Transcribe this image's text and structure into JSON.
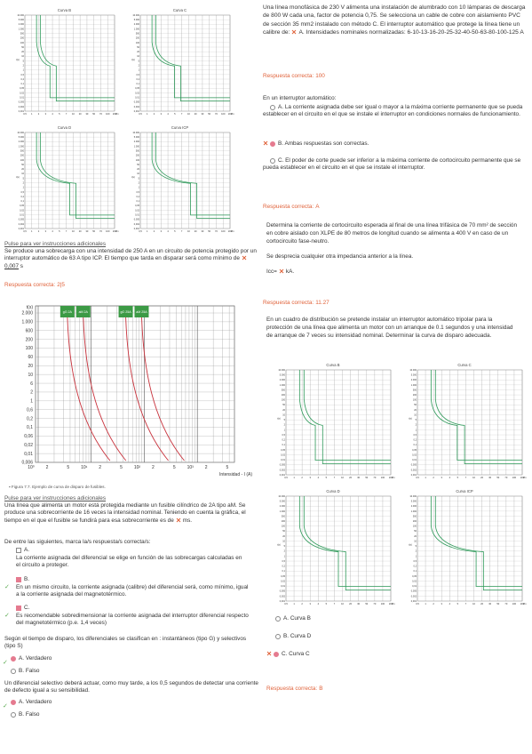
{
  "left": {
    "charts_top": [
      "Curva B",
      "Curva C",
      "Curva D",
      "Curva ICP"
    ],
    "q1": {
      "link": "Pulse para ver instrucciones adicionales",
      "text": "Se produce una sobrecarga con una intensidad de 250 A en un circuito de potencia protegido por un interruptor automático de 63 A tipo ICP. El tiempo que tarda en disparar será como mínimo de",
      "answer": "0,007",
      "unit": "s",
      "correct": "2|5"
    },
    "big_chart": {
      "y_label": "t(s)",
      "yticks": [
        "2.000",
        "1.000",
        "600",
        "200",
        "100",
        "60",
        "20",
        "10",
        "6",
        "2",
        "1",
        "0,6",
        "0,2",
        "0,1",
        "0,06",
        "0,02",
        "0,01",
        "0,006"
      ],
      "xticks": [
        "10⁰",
        "2",
        "5",
        "10¹",
        "2",
        "5",
        "10²",
        "2",
        "5",
        "10³",
        "2",
        "5"
      ],
      "x_label": "Intensidad - I (A)",
      "fuses": [
        "gG 2A",
        "aM 2A",
        "gG 25A",
        "aM 25A"
      ],
      "caption": "Figura 7.7. Ejemplo de curva de disparo de fusibles."
    },
    "q2": {
      "link": "Pulse para ver instrucciones adicionales",
      "text": "Una línea que alimenta un motor está protegida mediante un fusible cilíndrico de 2A tipo aM. Se produce una sobrecorriente de  16 veces la intensidad nominal. Teniendo en cuenta la gráfica, el tiempo en el que el fusible se fundirá para esa sobrecorriente es de",
      "unit": "ms."
    },
    "q3": {
      "stem": "De entre las siguientes, marca la/s respuesta/s correcta/s:",
      "options": [
        {
          "letter": "A.",
          "text": "La corriente asignada del diferencial se elige en función de las sobrecargas calculadas en el circuito a proteger."
        },
        {
          "letter": "B.",
          "text": "En un mismo circuito, la corriente asignada (calibre) del diferencial será, como mínimo, igual a la corriente asignada del magnetotérmico."
        },
        {
          "letter": "C.",
          "text": "Es recomendable sobredimensionar la corriente asignada del interruptor diferencial respecto del magnetotérmico (p.e. 1,4 veces)"
        }
      ]
    },
    "q4": {
      "stem": "Según el tiempo de disparo, los diferenciales se clasifican en : instantáneos (tipo G) y selectivos (tipo S)",
      "options": [
        "A. Verdadero",
        "B. Falso"
      ]
    },
    "q5": {
      "stem": "Un diferencial selectivo deberá actuar, como muy tarde, a los 0,5 segundos de detectar una corriente de defecto igual a su sensibilidad.",
      "options": [
        "A. Verdadero",
        "B. Falso"
      ]
    }
  },
  "right": {
    "q1": {
      "text_before": "Una línea monofásica de 230 V alimenta una instalación de alumbrado con 10 lámparas de descarga de 800 W cada una, factor de potencia 0,75. Se selecciona un cable de cobre con aislamiento PVC de sección 35 mm2 instalado con método C. El interruptor automático que protege la línea tiene un calibre de:",
      "text_after": "A. Intensidades nominales normalizadas: 6-10-13-16-20-25-32-40-50-63-80-100-125 A",
      "correct": "100"
    },
    "q2": {
      "stem": "En un interruptor automático:",
      "options": [
        "A. La corriente asignada debe ser igual o mayor a la máxima corriente permanente que se pueda establecer en el circuito en el que se instale el interruptor en condiciones normales de funcionamiento.",
        "B. Ambas respuestas son correctas.",
        "C. El poder de corte puede ser inferior a la máxima corriente de cortocircuito permanente que se pueda establecer en el circuito en el que se instale el interruptor."
      ],
      "correct": "A"
    },
    "q3": {
      "text": "Determina la corriente de cortocircuito esperada al final de una línea trifásica de 70 mm² de sección en cobre aislado con XLPE de 80 metros de longitud cuando se alimenta a 400 V en caso de un cortocircuito fase-neutro.",
      "note": "Se desprecia cualquier otra impedancia anterior a la línea.",
      "prefix": "Icc=",
      "unit": "kA.",
      "correct": "11.27"
    },
    "q4": {
      "text": "En un cuadro de distribución se pretende instalar un interruptor automático tripolar para la protección de una línea que alimenta un motor con un arranque de 0.1 segundos y una intensidad de arranque de 7 veces su intensidad nominal. Determinar la curva de disparo adecuada.",
      "charts": [
        "Curva B",
        "Curva C",
        "Curva D",
        "Curva ICP"
      ],
      "options": [
        "A. Curva B",
        "B. Curva D",
        "C. Curva C"
      ],
      "correct": "B"
    }
  },
  "answer_label": "Respuesta correcta:",
  "small_axis": {
    "y": [
      "10.000",
      "5.000",
      "2.000",
      "1.000",
      "500",
      "200",
      "100",
      "50",
      "20",
      "10",
      "5",
      "2",
      "1",
      "0,5",
      "0,2",
      "0,1",
      "0,05",
      "0,02",
      "0,01",
      "0,005",
      "0,002",
      "0,001"
    ],
    "x": [
      "0,5",
      "1",
      "2",
      "3",
      "4",
      "5",
      "7",
      "10",
      "20",
      "30",
      "50",
      "70",
      "100",
      "200"
    ],
    "x_unit": "I/In",
    "y_unit": "t(s)"
  }
}
